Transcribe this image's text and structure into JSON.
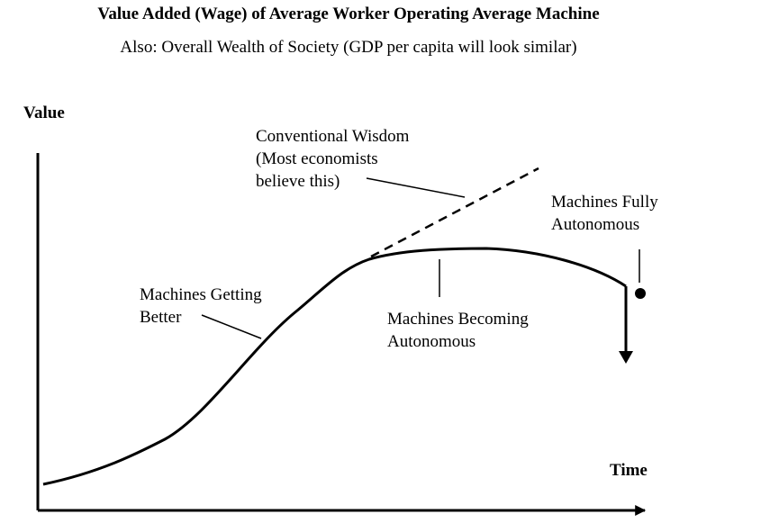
{
  "title": "Value Added (Wage) of Average Worker Operating Average Machine",
  "subtitle": "Also: Overall Wealth of Society (GDP per capita will look similar)",
  "axes": {
    "y_label": "Value",
    "x_label": "Time"
  },
  "annotations": {
    "conventional_wisdom": [
      "Conventional Wisdom",
      "(Most economists",
      "believe this)"
    ],
    "machines_getting_better": [
      "Machines Getting",
      "Better"
    ],
    "machines_becoming_autonomous": [
      "Machines Becoming",
      "Autonomous"
    ],
    "machines_fully_autonomous": [
      "Machines Fully",
      "Autonomous"
    ]
  },
  "style": {
    "ink_color": "#000000",
    "background": "#ffffff"
  }
}
